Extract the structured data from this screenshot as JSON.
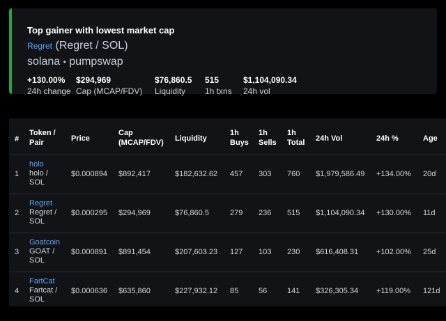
{
  "card": {
    "title": "Top gainer with lowest market cap",
    "token_link": "Regret",
    "token_pair": "(Regret / SOL)",
    "chain": "solana",
    "separator": "•",
    "dex": "pumpswap",
    "stats": [
      {
        "value": "+130.00%",
        "label": "24h change"
      },
      {
        "value": "$294,969",
        "label": "Cap (MCAP/FDV)"
      },
      {
        "value": "$76,860.5",
        "label": "Liquidity"
      },
      {
        "value": "515",
        "label": "1h txns"
      },
      {
        "value": "$1,104,090.34",
        "label": "24h vol"
      }
    ],
    "accent_color": "#2ea043"
  },
  "table": {
    "headers": {
      "rank": "#",
      "token_1": "Token /",
      "token_2": "Pair",
      "price": "Price",
      "cap_1": "Cap",
      "cap_2": "(MCAP/FDV)",
      "liquidity": "Liquidity",
      "buys_1": "1h",
      "buys_2": "Buys",
      "sells_1": "1h",
      "sells_2": "Sells",
      "total_1": "1h",
      "total_2": "Total",
      "vol": "24h Vol",
      "pct": "24h %",
      "age": "Age"
    },
    "rows": [
      {
        "rank": "1",
        "name": "holo",
        "pair_1": "holo /",
        "pair_2": "SOL",
        "price": "$0.000894",
        "cap": "$892,417",
        "liquidity": "$182,632.62",
        "buys": "457",
        "sells": "303",
        "total": "760",
        "vol": "$1,979,586.49",
        "pct": "+134.00%",
        "age": "20d"
      },
      {
        "rank": "2",
        "name": "Regret",
        "pair_1": "Regret /",
        "pair_2": "SOL",
        "price": "$0.000295",
        "cap": "$294,969",
        "liquidity": "$76,860.5",
        "buys": "279",
        "sells": "236",
        "total": "515",
        "vol": "$1,104,090.34",
        "pct": "+130.00%",
        "age": "11d"
      },
      {
        "rank": "3",
        "name": "Goatcoin",
        "pair_1": "GOAT /",
        "pair_2": "SOL",
        "price": "$0.000891",
        "cap": "$891,454",
        "liquidity": "$207,603.23",
        "buys": "127",
        "sells": "103",
        "total": "230",
        "vol": "$616,408.31",
        "pct": "+102.00%",
        "age": "25d"
      },
      {
        "rank": "4",
        "name": "FartCat",
        "pair_1": "Fartcat /",
        "pair_2": "SOL",
        "price": "$0.000636",
        "cap": "$635,860",
        "liquidity": "$227,932.12",
        "buys": "85",
        "sells": "56",
        "total": "141",
        "vol": "$326,305.34",
        "pct": "+119.00%",
        "age": "121d"
      }
    ]
  }
}
